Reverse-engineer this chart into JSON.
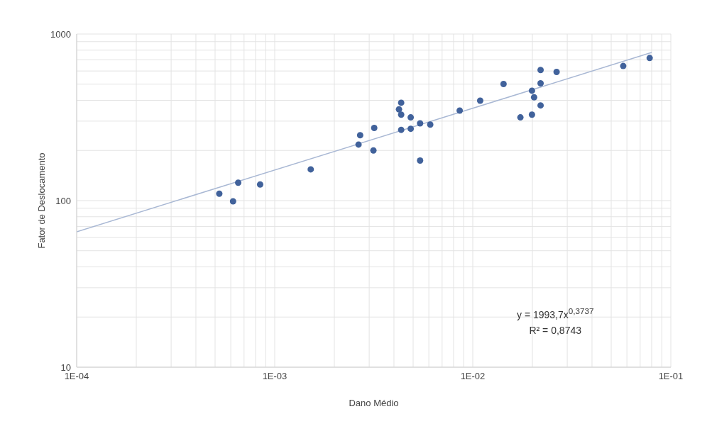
{
  "chart_data": {
    "type": "scatter",
    "xlabel": "Dano Médio",
    "ylabel": "Fator de Deslocamento",
    "log": "xy",
    "grid": true,
    "xlim": [
      0.0001,
      0.1
    ],
    "xticks": [
      {
        "value": 0.0001,
        "label": "1E-04"
      },
      {
        "value": 0.0002,
        "label": null
      },
      {
        "value": 0.0003,
        "label": null
      },
      {
        "value": 0.0004,
        "label": null
      },
      {
        "value": 0.0005,
        "label": null
      },
      {
        "value": 0.0006,
        "label": null
      },
      {
        "value": 0.0007,
        "label": null
      },
      {
        "value": 0.0008,
        "label": null
      },
      {
        "value": 0.0009,
        "label": null
      },
      {
        "value": 0.001,
        "label": "1E-03"
      },
      {
        "value": 0.002,
        "label": null
      },
      {
        "value": 0.003,
        "label": null
      },
      {
        "value": 0.004,
        "label": null
      },
      {
        "value": 0.005,
        "label": null
      },
      {
        "value": 0.006,
        "label": null
      },
      {
        "value": 0.007,
        "label": null
      },
      {
        "value": 0.008,
        "label": null
      },
      {
        "value": 0.009,
        "label": null
      },
      {
        "value": 0.01,
        "label": "1E-02"
      },
      {
        "value": 0.02,
        "label": null
      },
      {
        "value": 0.03,
        "label": null
      },
      {
        "value": 0.04,
        "label": null
      },
      {
        "value": 0.05,
        "label": null
      },
      {
        "value": 0.06,
        "label": null
      },
      {
        "value": 0.07,
        "label": null
      },
      {
        "value": 0.08,
        "label": null
      },
      {
        "value": 0.09,
        "label": null
      },
      {
        "value": 0.1,
        "label": "1E-01"
      }
    ],
    "ylim": [
      10,
      1000
    ],
    "yticks": [
      10,
      {
        "value": 20,
        "label": null
      },
      {
        "value": 30,
        "label": null
      },
      {
        "value": 40,
        "label": null
      },
      {
        "value": 50,
        "label": null
      },
      {
        "value": 60,
        "label": null
      },
      {
        "value": 70,
        "label": null
      },
      {
        "value": 80,
        "label": null
      },
      {
        "value": 90,
        "label": null
      },
      100,
      {
        "value": 200,
        "label": null
      },
      {
        "value": 300,
        "label": null
      },
      {
        "value": 400,
        "label": null
      },
      {
        "value": 500,
        "label": null
      },
      {
        "value": 600,
        "label": null
      },
      {
        "value": 700,
        "label": null
      },
      {
        "value": 800,
        "label": null
      },
      {
        "value": 900,
        "label": null
      },
      1000
    ],
    "series": [
      {
        "color": "#41629b",
        "marker": "circle",
        "x": [
          0.000525,
          0.000616,
          0.000654,
          0.000844,
          0.00152,
          0.00265,
          0.0027,
          0.00318,
          0.00315,
          0.00424,
          0.00435,
          0.00435,
          0.00435,
          0.00486,
          0.00486,
          0.00542,
          0.00542,
          0.0061,
          0.00859,
          0.0109,
          0.0143,
          0.0174,
          0.0199,
          0.0199,
          0.0204,
          0.022,
          0.022,
          0.022,
          0.0265,
          0.0575,
          0.0782
        ],
        "values": [
          110,
          99,
          128,
          125,
          154,
          217,
          247,
          273,
          200,
          353,
          387,
          328,
          266,
          316,
          270,
          291,
          174,
          286,
          347,
          398,
          501,
          316,
          328,
          457,
          417,
          373,
          608,
          506,
          592,
          643,
          718
        ]
      },
      {
        "type": "line",
        "color": "#a9b8d4",
        "marker": "none",
        "x": [
          0.0001,
          0.08
        ],
        "values": [
          65,
          775
        ]
      }
    ],
    "annotations": [
      "y = 1993,7x$^{0,3737}$",
      "R² = 0,8743"
    ]
  }
}
